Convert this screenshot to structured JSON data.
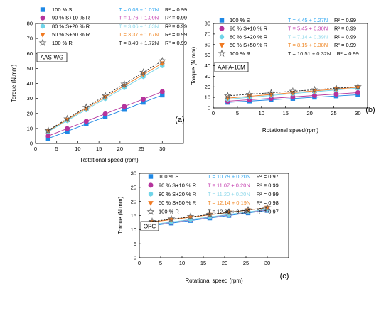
{
  "chart_data": [
    {
      "type": "scatter",
      "panel_label": "(a)",
      "box_label": "AAS-WG",
      "xlabel": "Rotational speed (rpm)",
      "ylabel": "Torque (N.mm)",
      "xlim": [
        0,
        35
      ],
      "ylim": [
        0,
        80
      ],
      "xticks": [
        0,
        5,
        10,
        15,
        20,
        25,
        30
      ],
      "yticks": [
        0,
        10,
        20,
        30,
        40,
        50,
        60,
        70,
        80
      ],
      "x": [
        3,
        7.5,
        12,
        16.5,
        21,
        25.5,
        30
      ],
      "series": [
        {
          "name": "100 % S",
          "marker": "square",
          "color": "#1e88e5",
          "values": [
            3.3,
            8.1,
            12.9,
            17.8,
            22.6,
            27.4,
            32.2
          ],
          "equation": "T = 0.08 + 1.07N",
          "r2": "R² = 0.99",
          "eq_color": "#33a8f0"
        },
        {
          "name": "90 % S+10 % R",
          "marker": "circle",
          "color": "#b5339c",
          "values": [
            5.0,
            9.9,
            14.8,
            19.7,
            24.6,
            29.6,
            34.5
          ],
          "equation": "T = 1.76 + 1.09N",
          "r2": "R² = 0.99",
          "eq_color": "#c542b0"
        },
        {
          "name": "80 % S+20 % R",
          "marker": "hexagon",
          "color": "#6fd4e8",
          "values": [
            7.9,
            15.2,
            22.5,
            29.9,
            37.2,
            44.6,
            51.9
          ],
          "equation": "T = 3.06 + 1.63N",
          "r2": "R² = 0.99",
          "eq_color": "#8fd8ea"
        },
        {
          "name": "50 % S+50 % R",
          "marker": "triangle-down",
          "color": "#f07a22",
          "values": [
            8.4,
            15.9,
            23.4,
            30.9,
            38.5,
            46.0,
            53.5
          ],
          "equation": "T = 3.37 + 1.67N",
          "r2": "R² = 0.99",
          "eq_color": "#f08a2a"
        },
        {
          "name": "100 % R",
          "marker": "star",
          "color": "#666666",
          "values": [
            8.7,
            16.4,
            24.1,
            31.9,
            39.6,
            47.4,
            55.1
          ],
          "equation": "T = 3.49 + 1.72N",
          "r2": "R² = 0.99",
          "eq_color": "#222222"
        }
      ]
    },
    {
      "type": "scatter",
      "panel_label": "(b)",
      "box_label": "AAFA-10M",
      "xlabel": "Rotational speed(rpm)",
      "ylabel": "Torque (N.mm)",
      "xlim": [
        0,
        32
      ],
      "ylim": [
        0,
        80
      ],
      "xticks": [
        0,
        5,
        10,
        15,
        20,
        25,
        30
      ],
      "yticks": [
        0,
        10,
        20,
        30,
        40,
        50,
        60,
        70,
        80
      ],
      "x": [
        3,
        7.5,
        12,
        16.5,
        21,
        25.5,
        30
      ],
      "series": [
        {
          "name": "100 % S",
          "marker": "square",
          "color": "#1e88e5",
          "values": [
            5.3,
            6.5,
            7.7,
            8.9,
            10.1,
            11.3,
            12.5
          ],
          "equation": "T = 4.45 + 0.27N",
          "r2": "R² = 0.99",
          "eq_color": "#33a8f0"
        },
        {
          "name": "90 % S+10 % R",
          "marker": "circle",
          "color": "#b5339c",
          "values": [
            6.4,
            7.7,
            9.1,
            10.4,
            11.8,
            13.1,
            14.5
          ],
          "equation": "T = 5.45 + 0.30N",
          "r2": "R² = 0.99",
          "eq_color": "#c542b0"
        },
        {
          "name": "80 % S+20 % R",
          "marker": "hexagon",
          "color": "#6fd4e8",
          "values": [
            8.3,
            10.1,
            11.8,
            13.6,
            15.3,
            17.1,
            18.8
          ],
          "equation": "T = 7.14 + 0.39N",
          "r2": "R² = 0.99",
          "eq_color": "#8fd8ea"
        },
        {
          "name": "50 % S+50 % R",
          "marker": "triangle-down",
          "color": "#f07a22",
          "values": [
            9.3,
            11.0,
            12.7,
            14.4,
            16.1,
            17.8,
            19.6
          ],
          "equation": "T = 8.15 + 0.38N",
          "r2": "R² = 0.99",
          "eq_color": "#f08a2a"
        },
        {
          "name": "100 % R",
          "marker": "star",
          "color": "#666666",
          "values": [
            11.5,
            12.9,
            14.3,
            15.8,
            17.2,
            18.7,
            20.1
          ],
          "equation": "T = 10.51 + 0.32N",
          "r2": "R² = 0.99",
          "eq_color": "#222222"
        }
      ]
    },
    {
      "type": "scatter",
      "panel_label": "(c)",
      "box_label": "OPC",
      "xlabel": "Rotational speed (rpm)",
      "ylabel": "Torque (N.mm)",
      "xlim": [
        0,
        35
      ],
      "ylim": [
        0,
        30
      ],
      "xticks": [
        0,
        5,
        10,
        15,
        20,
        25,
        30
      ],
      "yticks": [
        0,
        5,
        10,
        15,
        20,
        25,
        30
      ],
      "x": [
        3,
        7.5,
        12,
        16.5,
        21,
        25.5,
        30
      ],
      "series": [
        {
          "name": "100 % S",
          "marker": "square",
          "color": "#1e88e5",
          "values": [
            11.4,
            12.3,
            13.2,
            14.1,
            15.0,
            15.9,
            16.8
          ],
          "equation": "T = 10.79 + 0.20N",
          "r2": "R² = 0.97",
          "eq_color": "#33a8f0"
        },
        {
          "name": "90 % S+10 % R",
          "marker": "circle",
          "color": "#b5339c",
          "values": [
            11.7,
            12.6,
            13.5,
            14.4,
            15.3,
            16.2,
            17.1
          ],
          "equation": "T = 11.07 + 0.20N",
          "r2": "R² = 0.99",
          "eq_color": "#c542b0"
        },
        {
          "name": "80 % S+20 % R",
          "marker": "hexagon",
          "color": "#6fd4e8",
          "values": [
            11.8,
            12.7,
            13.6,
            14.5,
            15.4,
            16.3,
            17.2
          ],
          "equation": "T = 11.20 + 0.20N",
          "r2": "R² = 0.99",
          "eq_color": "#8fd8ea"
        },
        {
          "name": "50 % S+50 % R",
          "marker": "triangle-down",
          "color": "#f07a22",
          "values": [
            12.7,
            13.6,
            14.4,
            15.3,
            16.1,
            16.9,
            17.8
          ],
          "equation": "T = 12.14 + 0.19N",
          "r2": "R² = 0.98",
          "eq_color": "#f08a2a"
        },
        {
          "name": "100 % R",
          "marker": "star",
          "color": "#666666",
          "values": [
            12.9,
            13.8,
            14.6,
            15.4,
            16.2,
            17.0,
            17.8
          ],
          "equation": "T = 12.39 + 0.18N",
          "r2": "R² = 0.97",
          "eq_color": "#222222"
        }
      ]
    }
  ]
}
